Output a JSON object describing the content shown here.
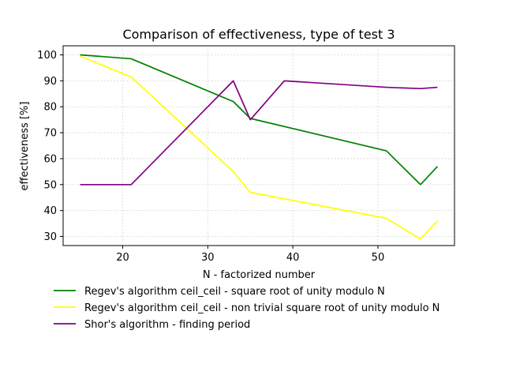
{
  "chart_data": {
    "type": "line",
    "title": "Comparison of effectiveness, type of test 3",
    "xlabel": "N - factorized number",
    "ylabel": "effectiveness [%]",
    "xlim": [
      13,
      59
    ],
    "ylim": [
      26.5,
      103.5
    ],
    "xticks": [
      20,
      30,
      40,
      50
    ],
    "yticks": [
      30,
      40,
      50,
      60,
      70,
      80,
      90,
      100
    ],
    "grid": true,
    "legend_position": "below",
    "series": [
      {
        "name": "Regev's algorithm ceil_ceil - square root of unity modulo N",
        "color": "#008000",
        "x": [
          15,
          21,
          33,
          35,
          51,
          55,
          57
        ],
        "y": [
          100,
          98.5,
          82,
          75.5,
          63,
          50,
          57
        ]
      },
      {
        "name": "Regev's algorithm ceil_ceil - non trivial square root of unity modulo N",
        "color": "#ffff00",
        "x": [
          15,
          21,
          33,
          35,
          51,
          55,
          57
        ],
        "y": [
          99.5,
          91.5,
          55,
          47,
          37,
          29,
          36
        ]
      },
      {
        "name": "Shor's algorithm - finding period",
        "color": "#800080",
        "x": [
          15,
          21,
          33,
          35,
          39,
          51,
          55,
          57
        ],
        "y": [
          50,
          50,
          90,
          75,
          90,
          87.5,
          87,
          87.5
        ]
      }
    ]
  }
}
